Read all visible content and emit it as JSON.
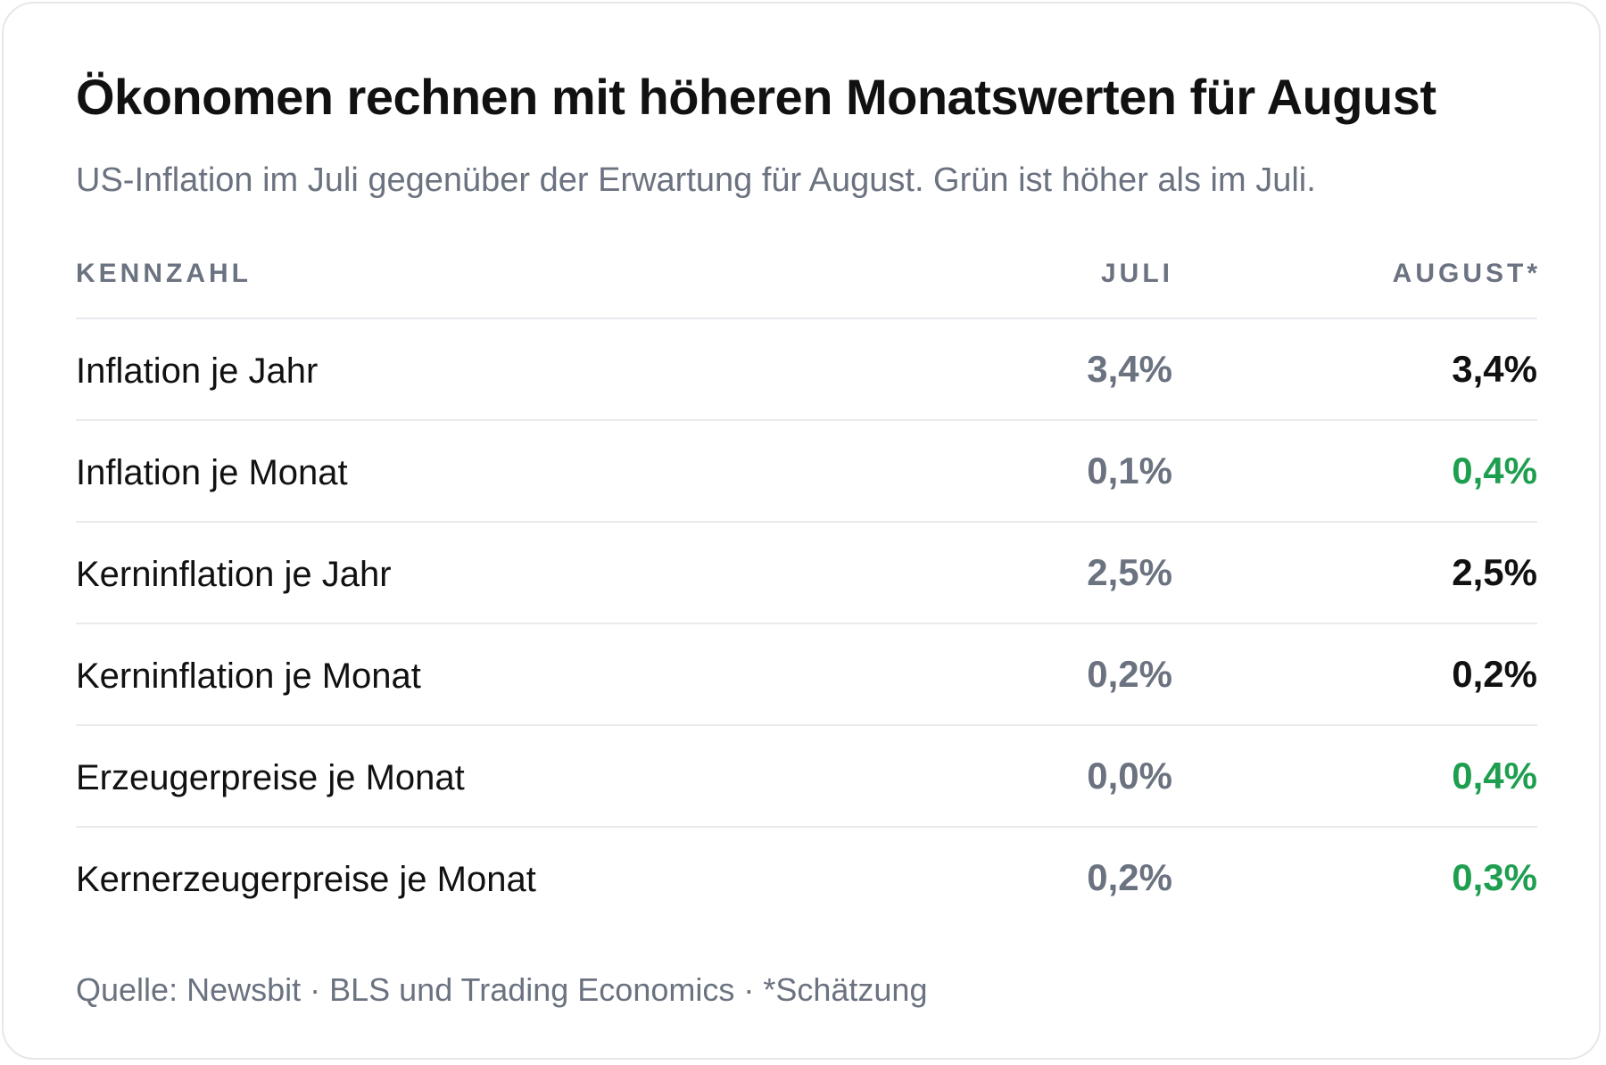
{
  "title": "Ökonomen rechnen mit höheren Monatswerten für August",
  "subtitle": "US-Inflation im Juli gegenüber der Erwartung für August. Grün ist höher als im Juli.",
  "columns": {
    "label": "KENNZAHL",
    "july": "JULI",
    "august": "AUGUST*"
  },
  "source": "Quelle: Newsbit · BLS und Trading Economics · *Schätzung",
  "colors": {
    "higher": "#1e9e4f",
    "same": "#111111",
    "july": "#6b7280"
  },
  "chart_data": {
    "type": "table",
    "title": "Ökonomen rechnen mit höheren Monatswerten für August",
    "subtitle": "US-Inflation im Juli gegenüber der Erwartung für August. Grün ist höher als im Juli.",
    "columns": [
      "KENNZAHL",
      "JULI",
      "AUGUST*"
    ],
    "rows": [
      {
        "label": "Inflation je Jahr",
        "july": "3,4%",
        "august": "3,4%",
        "higher": false
      },
      {
        "label": "Inflation je Monat",
        "july": "0,1%",
        "august": "0,4%",
        "higher": true
      },
      {
        "label": "Kerninflation je Jahr",
        "july": "2,5%",
        "august": "2,5%",
        "higher": false
      },
      {
        "label": "Kerninflation je Monat",
        "july": "0,2%",
        "august": "0,2%",
        "higher": false
      },
      {
        "label": "Erzeugerpreise je Monat",
        "july": "0,0%",
        "august": "0,4%",
        "higher": true
      },
      {
        "label": "Kernerzeugerpreise je Monat",
        "july": "0,2%",
        "august": "0,3%",
        "higher": true
      }
    ]
  }
}
